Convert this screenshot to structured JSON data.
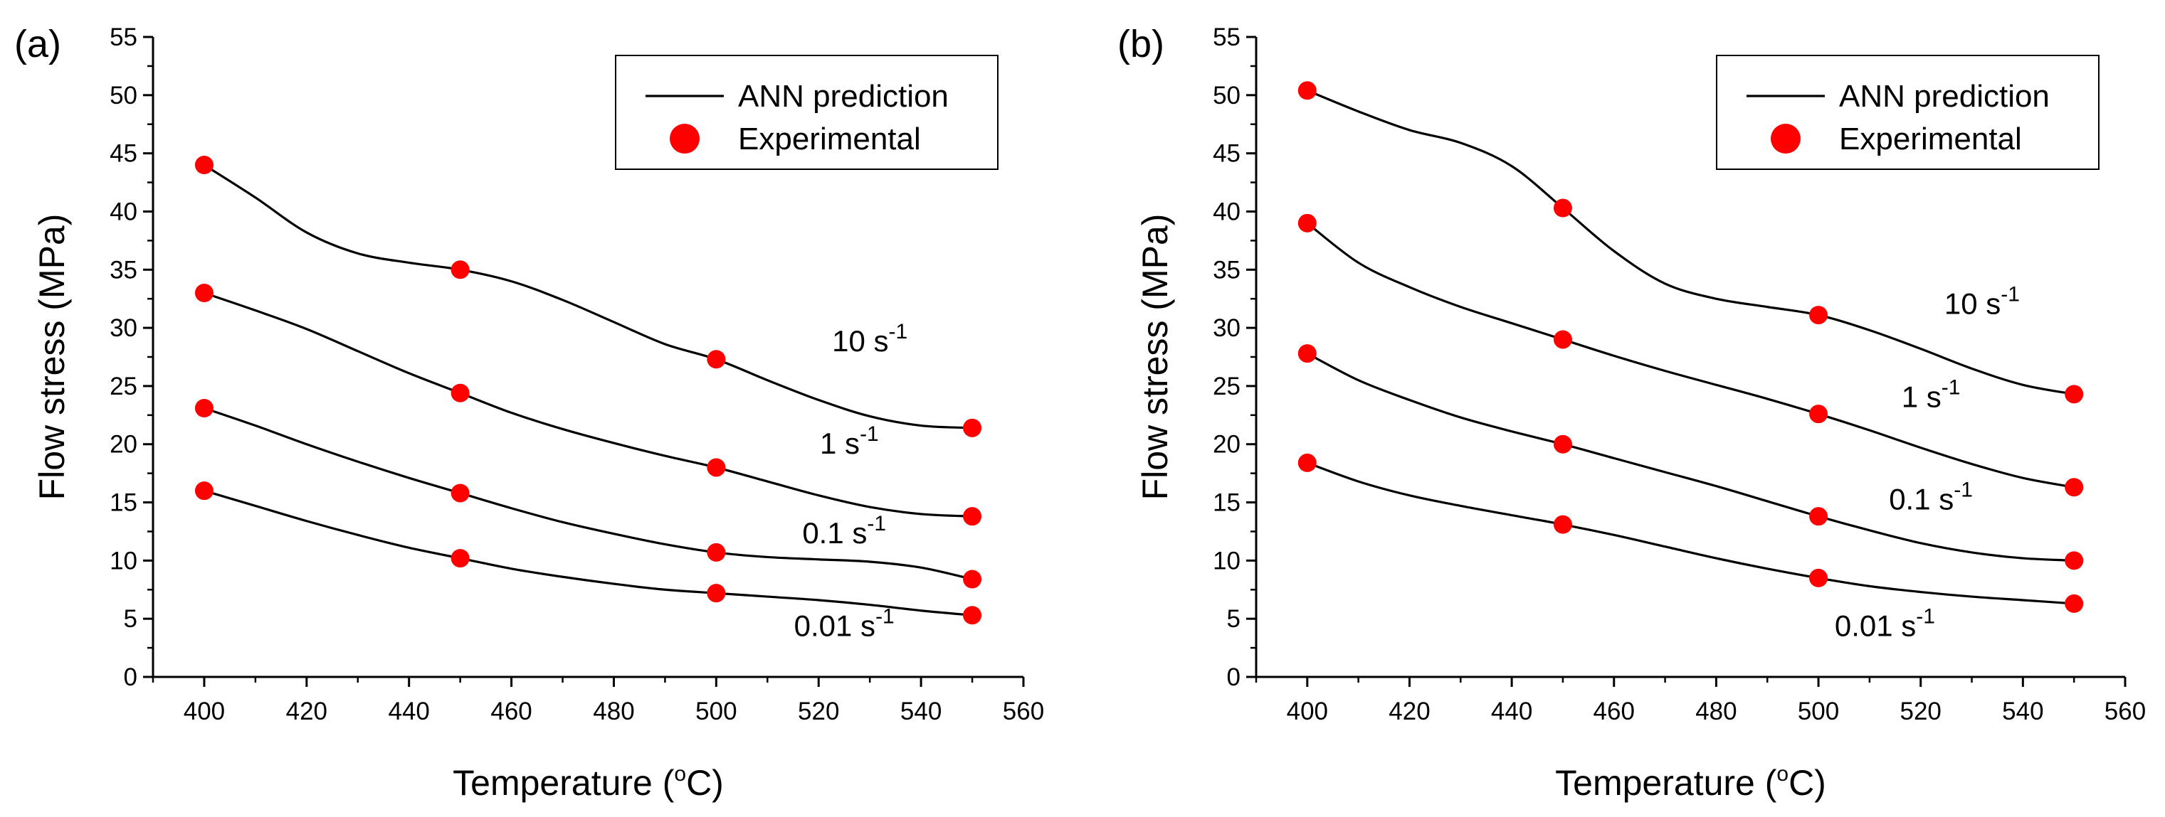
{
  "chart_data": [
    {
      "type": "line",
      "panel_label": "(a)",
      "xlabel": "Temperature (",
      "xlabel_degree": "o",
      "xlabel_unit": "C)",
      "ylabel": "Flow stress (MPa)",
      "xlim": [
        390,
        560
      ],
      "ylim": [
        0,
        55
      ],
      "xticks": [
        400,
        420,
        440,
        460,
        480,
        500,
        520,
        540,
        560
      ],
      "yticks": [
        0,
        5,
        10,
        15,
        20,
        25,
        30,
        35,
        40,
        45,
        50,
        55
      ],
      "legend": {
        "position": "top-right",
        "line_label": "ANN prediction",
        "marker_label": "Experimental"
      },
      "colors": {
        "line": "#000000",
        "marker": "#ff0000"
      },
      "x": [
        400,
        450,
        500,
        550
      ],
      "series": [
        {
          "name": "10 s-1",
          "label_main": "10 s",
          "label_sup": "-1",
          "label_anchor": [
            530,
            28
          ],
          "experimental": [
            44.0,
            35.0,
            27.3,
            21.4
          ],
          "ann": [
            [
              400,
              44.0
            ],
            [
              410,
              41.2
            ],
            [
              420,
              38.2
            ],
            [
              430,
              36.4
            ],
            [
              440,
              35.6
            ],
            [
              450,
              35.0
            ],
            [
              460,
              34.0
            ],
            [
              470,
              32.4
            ],
            [
              480,
              30.5
            ],
            [
              490,
              28.6
            ],
            [
              500,
              27.3
            ],
            [
              510,
              25.5
            ],
            [
              520,
              23.8
            ],
            [
              530,
              22.4
            ],
            [
              540,
              21.6
            ],
            [
              550,
              21.4
            ]
          ]
        },
        {
          "name": "1 s-1",
          "label_main": "1 s",
          "label_sup": "-1",
          "label_anchor": [
            526,
            19.2
          ],
          "experimental": [
            33.0,
            24.4,
            18.0,
            13.8
          ],
          "ann": [
            [
              400,
              33.0
            ],
            [
              410,
              31.5
            ],
            [
              420,
              29.9
            ],
            [
              430,
              28.0
            ],
            [
              440,
              26.1
            ],
            [
              450,
              24.4
            ],
            [
              460,
              22.7
            ],
            [
              470,
              21.3
            ],
            [
              480,
              20.1
            ],
            [
              490,
              19.0
            ],
            [
              500,
              18.0
            ],
            [
              510,
              16.8
            ],
            [
              520,
              15.6
            ],
            [
              530,
              14.6
            ],
            [
              540,
              14.0
            ],
            [
              550,
              13.8
            ]
          ]
        },
        {
          "name": "0.1 s-1",
          "label_main": "0.1 s",
          "label_sup": "-1",
          "label_anchor": [
            525,
            11.5
          ],
          "experimental": [
            23.1,
            15.8,
            10.7,
            8.4
          ],
          "ann": [
            [
              400,
              23.1
            ],
            [
              410,
              21.6
            ],
            [
              420,
              20.0
            ],
            [
              430,
              18.5
            ],
            [
              440,
              17.1
            ],
            [
              450,
              15.8
            ],
            [
              460,
              14.5
            ],
            [
              470,
              13.3
            ],
            [
              480,
              12.3
            ],
            [
              490,
              11.4
            ],
            [
              500,
              10.7
            ],
            [
              510,
              10.3
            ],
            [
              520,
              10.1
            ],
            [
              530,
              9.9
            ],
            [
              540,
              9.4
            ],
            [
              550,
              8.4
            ]
          ]
        },
        {
          "name": "0.01 s-1",
          "label_main": "0.01 s",
          "label_sup": "-1",
          "label_anchor": [
            525,
            3.5
          ],
          "experimental": [
            16.0,
            10.2,
            7.2,
            5.3
          ],
          "ann": [
            [
              400,
              16.0
            ],
            [
              410,
              14.7
            ],
            [
              420,
              13.4
            ],
            [
              430,
              12.2
            ],
            [
              440,
              11.1
            ],
            [
              450,
              10.2
            ],
            [
              460,
              9.3
            ],
            [
              470,
              8.6
            ],
            [
              480,
              8.0
            ],
            [
              490,
              7.5
            ],
            [
              500,
              7.2
            ],
            [
              510,
              6.9
            ],
            [
              520,
              6.6
            ],
            [
              530,
              6.2
            ],
            [
              540,
              5.7
            ],
            [
              550,
              5.3
            ]
          ]
        }
      ]
    },
    {
      "type": "line",
      "panel_label": "(b)",
      "xlabel": "Temperature (",
      "xlabel_degree": "o",
      "xlabel_unit": "C)",
      "ylabel": "Flow stress (MPa)",
      "xlim": [
        390,
        560
      ],
      "ylim": [
        0,
        55
      ],
      "xticks": [
        400,
        420,
        440,
        460,
        480,
        500,
        520,
        540,
        560
      ],
      "yticks": [
        0,
        5,
        10,
        15,
        20,
        25,
        30,
        35,
        40,
        45,
        50,
        55
      ],
      "legend": {
        "position": "top-right",
        "line_label": "ANN prediction",
        "marker_label": "Experimental"
      },
      "colors": {
        "line": "#000000",
        "marker": "#ff0000"
      },
      "x": [
        400,
        450,
        500,
        550
      ],
      "series": [
        {
          "name": "10 s-1",
          "label_main": "10 s",
          "label_sup": "-1",
          "label_anchor": [
            532,
            31.2
          ],
          "experimental": [
            50.4,
            40.3,
            31.1,
            24.3
          ],
          "ann": [
            [
              400,
              50.4
            ],
            [
              410,
              48.6
            ],
            [
              420,
              47.0
            ],
            [
              430,
              45.9
            ],
            [
              440,
              43.9
            ],
            [
              450,
              40.3
            ],
            [
              460,
              36.6
            ],
            [
              470,
              33.8
            ],
            [
              480,
              32.5
            ],
            [
              490,
              31.8
            ],
            [
              500,
              31.1
            ],
            [
              510,
              29.8
            ],
            [
              520,
              28.2
            ],
            [
              530,
              26.5
            ],
            [
              540,
              25.1
            ],
            [
              550,
              24.3
            ]
          ]
        },
        {
          "name": "1 s-1",
          "label_main": "1 s",
          "label_sup": "-1",
          "label_anchor": [
            522,
            23.2
          ],
          "experimental": [
            39.0,
            29.0,
            22.6,
            16.3
          ],
          "ann": [
            [
              400,
              39.0
            ],
            [
              410,
              35.6
            ],
            [
              420,
              33.5
            ],
            [
              430,
              31.8
            ],
            [
              440,
              30.4
            ],
            [
              450,
              29.0
            ],
            [
              460,
              27.6
            ],
            [
              470,
              26.3
            ],
            [
              480,
              25.1
            ],
            [
              490,
              23.9
            ],
            [
              500,
              22.6
            ],
            [
              510,
              21.2
            ],
            [
              520,
              19.7
            ],
            [
              530,
              18.3
            ],
            [
              540,
              17.1
            ],
            [
              550,
              16.3
            ]
          ]
        },
        {
          "name": "0.1 s-1",
          "label_main": "0.1 s",
          "label_sup": "-1",
          "label_anchor": [
            522,
            14.4
          ],
          "experimental": [
            27.8,
            20.0,
            13.8,
            10.0
          ],
          "ann": [
            [
              400,
              27.8
            ],
            [
              410,
              25.5
            ],
            [
              420,
              23.8
            ],
            [
              430,
              22.3
            ],
            [
              440,
              21.1
            ],
            [
              450,
              20.0
            ],
            [
              460,
              18.8
            ],
            [
              470,
              17.6
            ],
            [
              480,
              16.4
            ],
            [
              490,
              15.1
            ],
            [
              500,
              13.8
            ],
            [
              510,
              12.6
            ],
            [
              520,
              11.5
            ],
            [
              530,
              10.7
            ],
            [
              540,
              10.2
            ],
            [
              550,
              10.0
            ]
          ]
        },
        {
          "name": "0.01 s-1",
          "label_main": "0.01 s",
          "label_sup": "-1",
          "label_anchor": [
            513,
            3.5
          ],
          "experimental": [
            18.4,
            13.1,
            8.5,
            6.3
          ],
          "ann": [
            [
              400,
              18.4
            ],
            [
              410,
              16.8
            ],
            [
              420,
              15.6
            ],
            [
              430,
              14.7
            ],
            [
              440,
              13.9
            ],
            [
              450,
              13.1
            ],
            [
              460,
              12.2
            ],
            [
              470,
              11.2
            ],
            [
              480,
              10.2
            ],
            [
              490,
              9.3
            ],
            [
              500,
              8.5
            ],
            [
              510,
              7.8
            ],
            [
              520,
              7.3
            ],
            [
              530,
              6.9
            ],
            [
              540,
              6.6
            ],
            [
              550,
              6.3
            ]
          ]
        }
      ]
    }
  ]
}
